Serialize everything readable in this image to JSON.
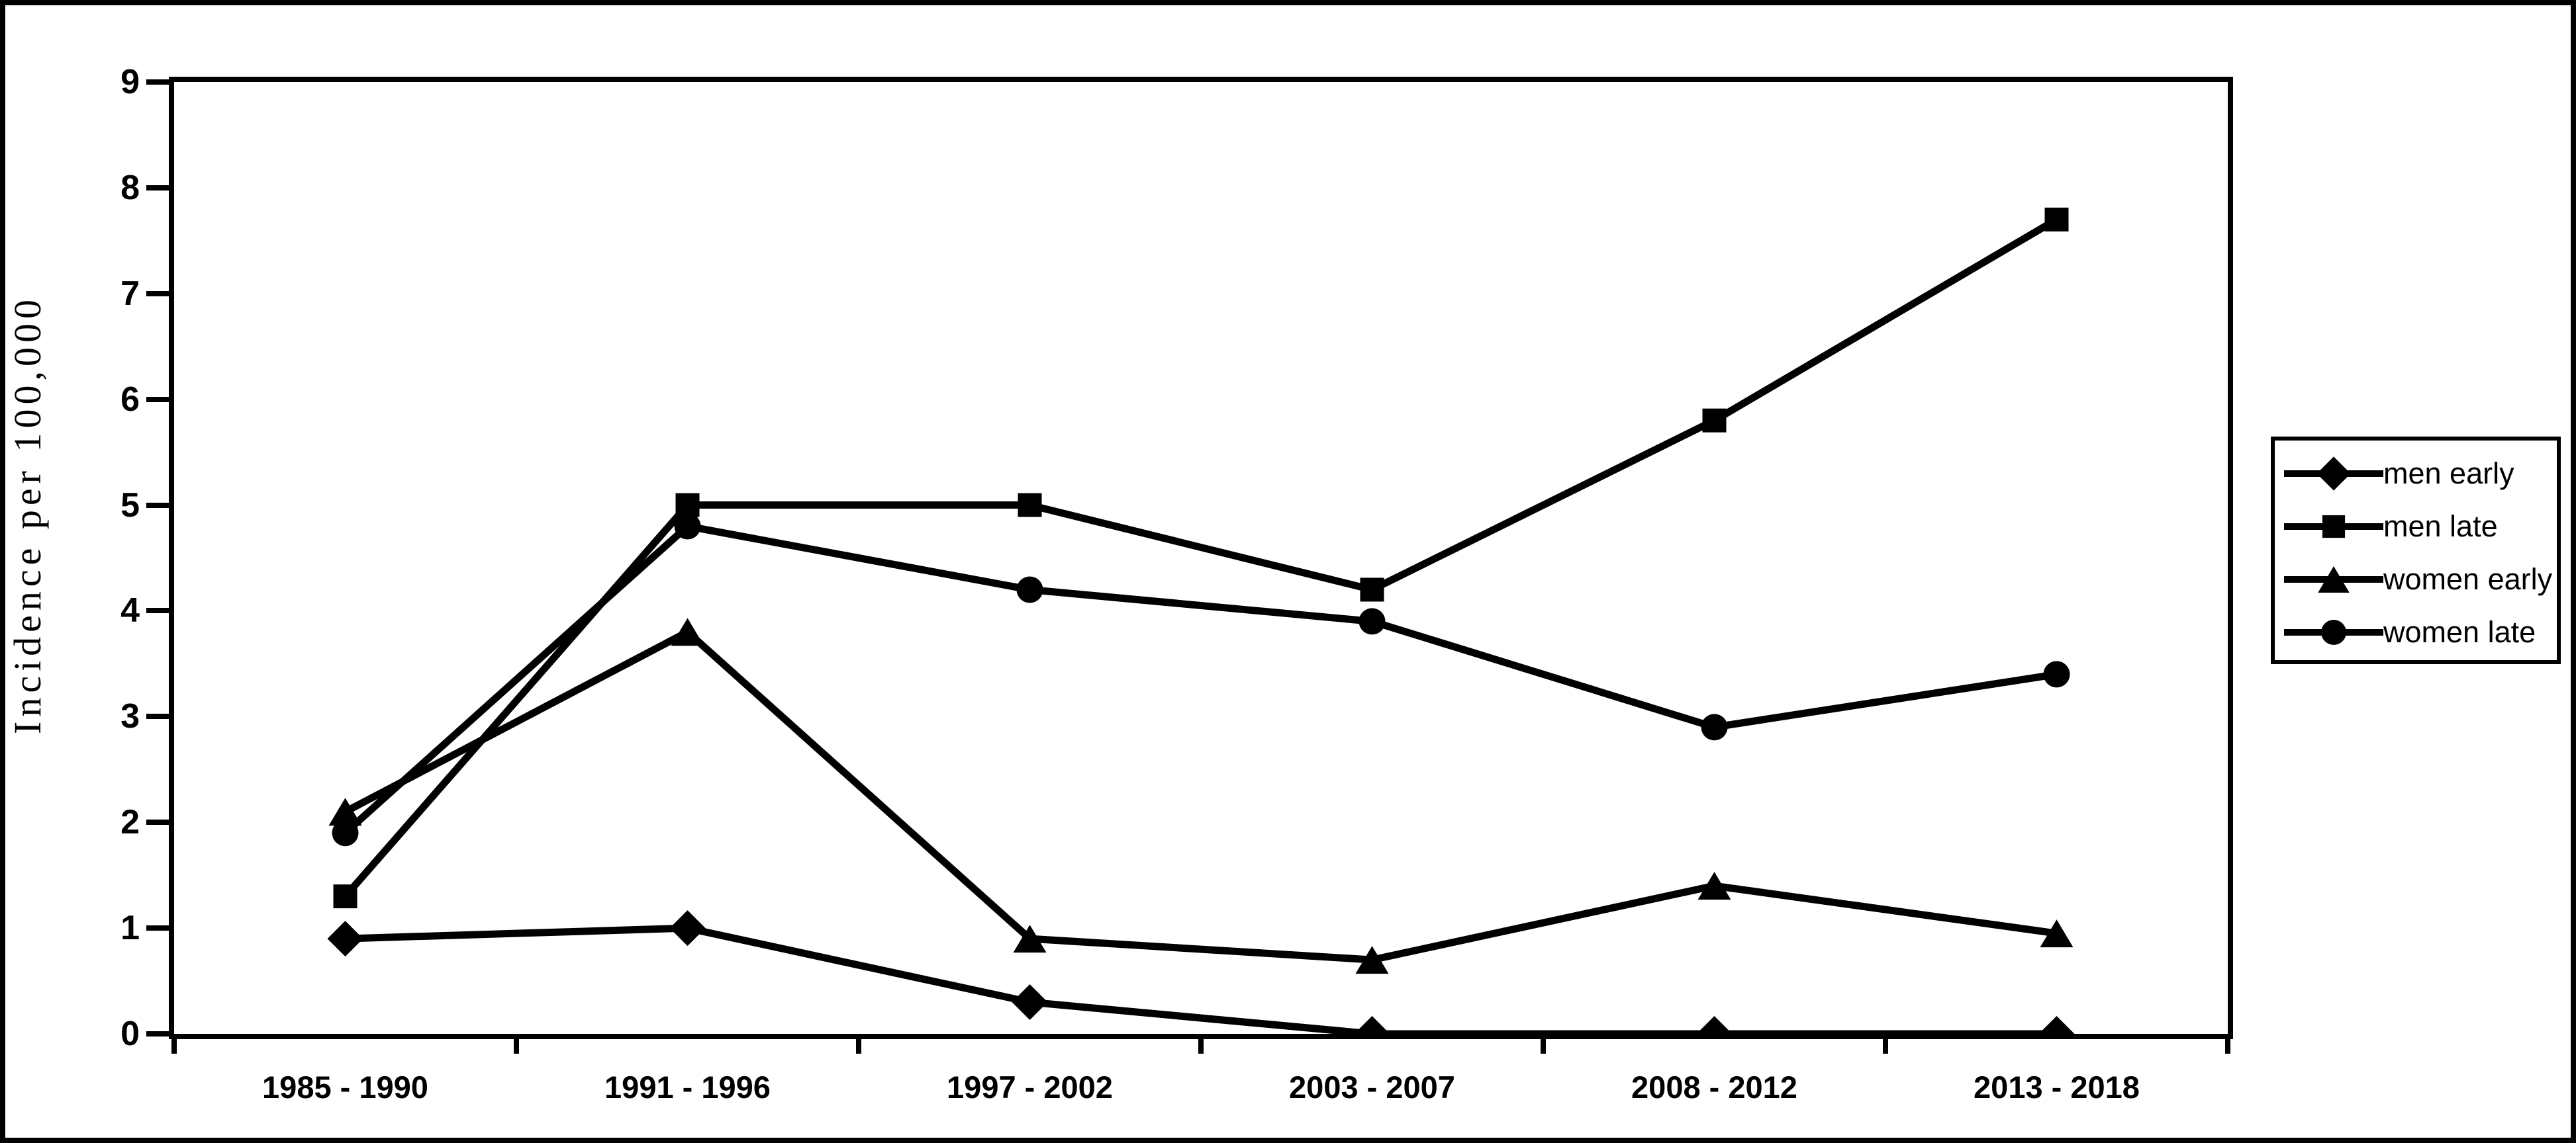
{
  "figure": {
    "background": "#ffffff",
    "frame_color": "#000000"
  },
  "chart_data": {
    "type": "line",
    "title": "",
    "xlabel": "",
    "ylabel": "Incidence per 100,000",
    "ylim": [
      0,
      9
    ],
    "yticks": [
      0,
      1,
      2,
      3,
      4,
      5,
      6,
      7,
      8,
      9
    ],
    "grid": false,
    "legend_position": "right-outside",
    "line_color": "#000000",
    "marker_color": "#000000",
    "categories": [
      "1985 - 1990",
      "1991 - 1996",
      "1997 - 2002",
      "2003 - 2007",
      "2008 - 2012",
      "2013 - 2018"
    ],
    "series": [
      {
        "name": "men early",
        "marker": "diamond",
        "values": [
          0.9,
          1.0,
          0.3,
          0.0,
          0.0,
          0.0
        ]
      },
      {
        "name": "men late",
        "marker": "square",
        "values": [
          1.3,
          5.0,
          5.0,
          4.2,
          5.8,
          7.7
        ]
      },
      {
        "name": "women early",
        "marker": "triangle",
        "values": [
          2.1,
          3.8,
          0.9,
          0.7,
          1.4,
          0.95
        ]
      },
      {
        "name": "women late",
        "marker": "circle",
        "values": [
          1.9,
          4.8,
          4.2,
          3.9,
          2.9,
          3.4
        ]
      }
    ]
  }
}
